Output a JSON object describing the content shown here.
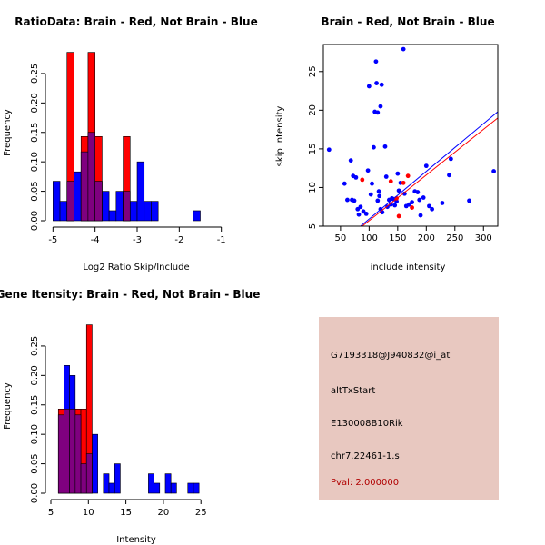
{
  "colors": {
    "red": "#ff0000",
    "blue": "#0000ff",
    "purple": "#7f007f",
    "info_bg": "#e8c8c0",
    "pval_text": "#b00000"
  },
  "chart_data": [
    {
      "id": "ratio",
      "type": "histogram-overlay",
      "title": "RatioData: Brain - Red, Not Brain - Blue",
      "xlabel": "Log2 Ratio Skip/Include",
      "ylabel": "Frequency",
      "xlim": [
        -5.05,
        -0.95
      ],
      "ylim": [
        0,
        0.29
      ],
      "xticks": [
        -5,
        -4,
        -3,
        -2,
        -1
      ],
      "yticks": [
        0.0,
        0.05,
        0.1,
        0.15,
        0.2,
        0.25
      ],
      "ytick_labels": [
        "0.00",
        "0.05",
        "0.10",
        "0.15",
        "0.20",
        "0.25"
      ],
      "bin_edges": [
        -5.0,
        -4.833,
        -4.667,
        -4.5,
        -4.333,
        -4.167,
        -4.0,
        -3.833,
        -3.667,
        -3.5,
        -3.333,
        -3.167,
        -3.0,
        -2.833,
        -2.667,
        -2.5,
        -2.333,
        -2.167,
        -2.0,
        -1.833,
        -1.667,
        -1.5,
        -1.333,
        -1.167,
        -1.0
      ],
      "series": [
        {
          "name": "Not Brain",
          "color": "blue",
          "values": [
            0.067,
            0.033,
            0.067,
            0.083,
            0.117,
            0.15,
            0.067,
            0.05,
            0.017,
            0.05,
            0.05,
            0.033,
            0.1,
            0.033,
            0.033,
            0,
            0,
            0,
            0,
            0,
            0.017,
            0,
            0,
            0
          ]
        },
        {
          "name": "Brain",
          "color": "red",
          "values": [
            0,
            0,
            0.286,
            0,
            0.143,
            0.286,
            0.143,
            0,
            0,
            0,
            0.143,
            0,
            0,
            0,
            0,
            0,
            0,
            0,
            0,
            0,
            0,
            0,
            0,
            0
          ]
        }
      ]
    },
    {
      "id": "scatter",
      "type": "scatter",
      "title": "Brain - Red, Not Brain - Blue",
      "xlabel": "include intensity",
      "ylabel": "skip intensity",
      "xlim": [
        20,
        325
      ],
      "ylim": [
        5,
        28.5
      ],
      "xticks": [
        50,
        100,
        150,
        200,
        250,
        300
      ],
      "yticks": [
        5,
        10,
        15,
        20,
        25
      ],
      "series": [
        {
          "name": "Not Brain",
          "color": "blue",
          "points": [
            [
              30,
              14.9
            ],
            [
              57,
              10.5
            ],
            [
              62,
              8.4
            ],
            [
              68,
              13.5
            ],
            [
              70,
              8.4
            ],
            [
              72,
              11.5
            ],
            [
              74,
              8.3
            ],
            [
              77,
              11.3
            ],
            [
              80,
              7.2
            ],
            [
              82,
              6.5
            ],
            [
              85,
              7.5
            ],
            [
              90,
              6.9
            ],
            [
              95,
              6.6
            ],
            [
              98,
              12.2
            ],
            [
              100,
              23.1
            ],
            [
              103,
              9.1
            ],
            [
              105,
              10.5
            ],
            [
              108,
              15.2
            ],
            [
              110,
              19.8
            ],
            [
              112,
              26.3
            ],
            [
              113,
              23.5
            ],
            [
              115,
              19.7
            ],
            [
              115,
              8.3
            ],
            [
              117,
              9.5
            ],
            [
              118,
              8.9
            ],
            [
              120,
              20.5
            ],
            [
              120,
              7.2
            ],
            [
              122,
              23.3
            ],
            [
              123,
              6.8
            ],
            [
              128,
              15.3
            ],
            [
              130,
              11.4
            ],
            [
              132,
              7.5
            ],
            [
              135,
              8.4
            ],
            [
              138,
              7.8
            ],
            [
              140,
              8.6
            ],
            [
              142,
              8.5
            ],
            [
              145,
              7.7
            ],
            [
              148,
              8.2
            ],
            [
              150,
              11.8
            ],
            [
              152,
              9.6
            ],
            [
              155,
              10.6
            ],
            [
              160,
              27.9
            ],
            [
              162,
              9.2
            ],
            [
              165,
              7.6
            ],
            [
              170,
              7.8
            ],
            [
              175,
              8.1
            ],
            [
              180,
              9.5
            ],
            [
              185,
              9.4
            ],
            [
              188,
              8.4
            ],
            [
              190,
              6.4
            ],
            [
              195,
              8.7
            ],
            [
              200,
              12.8
            ],
            [
              205,
              7.6
            ],
            [
              210,
              7.2
            ],
            [
              228,
              8
            ],
            [
              240,
              11.6
            ],
            [
              243,
              13.7
            ],
            [
              275,
              8.3
            ],
            [
              318,
              12.1
            ]
          ]
        },
        {
          "name": "Brain",
          "color": "red",
          "points": [
            [
              88,
              11
            ],
            [
              152,
              6.3
            ],
            [
              160,
              10.6
            ],
            [
              168,
              11.5
            ],
            [
              175,
              7.4
            ],
            [
              138,
              10.8
            ],
            [
              148,
              8.6
            ]
          ]
        }
      ],
      "fit_lines": [
        {
          "color": "blue",
          "x": [
            85,
            325
          ],
          "y": [
            5.0,
            19.8
          ]
        },
        {
          "color": "red",
          "x": [
            88,
            325
          ],
          "y": [
            5.0,
            19.0
          ]
        }
      ]
    },
    {
      "id": "intensity",
      "type": "histogram-overlay",
      "title": "Gene Itensity: Brain - Red, Not Brain - Blue",
      "xlabel": "Intensity",
      "ylabel": "Frequency",
      "xlim": [
        5,
        28
      ],
      "ylim": [
        0,
        0.29
      ],
      "xticks": [
        5,
        10,
        15,
        20,
        25
      ],
      "yticks": [
        0.0,
        0.05,
        0.1,
        0.15,
        0.2,
        0.25
      ],
      "ytick_labels": [
        "0.00",
        "0.05",
        "0.10",
        "0.15",
        "0.20",
        "0.25"
      ],
      "bin_edges": [
        6,
        6.75,
        7.5,
        8.25,
        9,
        9.75,
        10.5,
        11.25,
        12,
        12.75,
        13.5,
        14.25,
        15,
        15.75,
        16.5,
        17.25,
        18,
        18.75,
        19.5,
        20.25,
        21,
        21.75,
        22.5,
        23.25,
        24,
        24.75,
        25.5,
        26.25,
        27
      ],
      "series": [
        {
          "name": "Not Brain",
          "color": "blue",
          "values": [
            0.133,
            0.217,
            0.2,
            0.133,
            0.05,
            0.067,
            0.1,
            0,
            0.033,
            0.017,
            0.05,
            0,
            0,
            0,
            0,
            0,
            0.033,
            0.017,
            0,
            0.033,
            0.017,
            0,
            0,
            0.017,
            0.017,
            0,
            0,
            0
          ]
        },
        {
          "name": "Brain",
          "color": "red",
          "values": [
            0.143,
            0.143,
            0.143,
            0.143,
            0.143,
            0.286,
            0,
            0,
            0,
            0,
            0,
            0,
            0,
            0,
            0,
            0,
            0,
            0,
            0,
            0,
            0,
            0,
            0,
            0,
            0,
            0,
            0,
            0
          ]
        }
      ]
    }
  ],
  "info_panel": {
    "probe_id": "G7193318@J940832@i_at",
    "event_type": "altTxStart",
    "gene_name": "E130008B10Rik",
    "location": "chr7.22461-1.s",
    "pval": "Pval: 2.000000"
  }
}
